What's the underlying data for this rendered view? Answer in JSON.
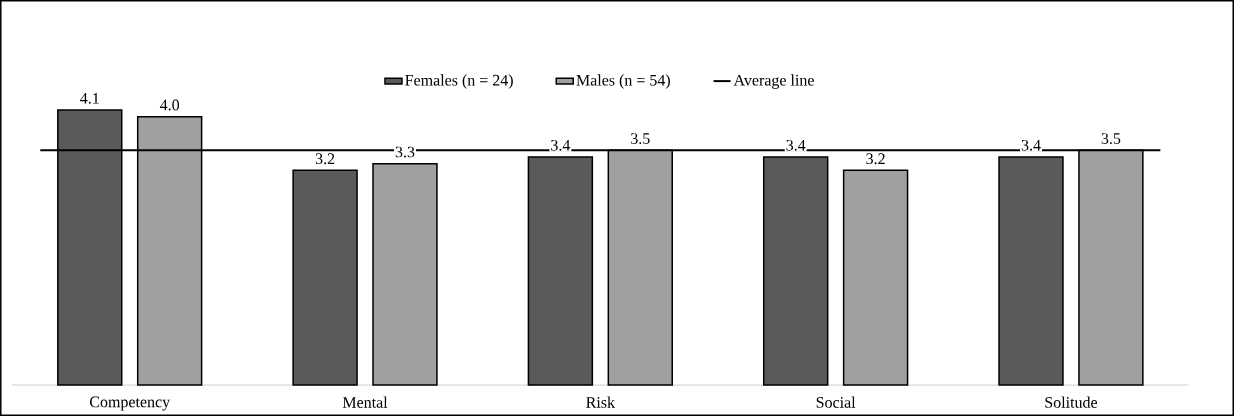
{
  "chart_data": {
    "type": "bar",
    "categories": [
      "Competency",
      "Mental",
      "Risk",
      "Social",
      "Solitude"
    ],
    "series": [
      {
        "name": "Females (n = 24)",
        "color": "#5a5a5a",
        "values": [
          4.1,
          3.2,
          3.4,
          3.4,
          3.4
        ],
        "value_labels": [
          "4.1",
          "3.2",
          "3.4",
          "3.4",
          "3.4"
        ]
      },
      {
        "name": "Males (n = 54)",
        "color": "#a0a0a0",
        "values": [
          4.0,
          3.3,
          3.5,
          3.2,
          3.5
        ],
        "value_labels": [
          "4.0",
          "3.3",
          "3.5",
          "3.2",
          "3.5"
        ]
      }
    ],
    "tick_labels": "x",
    "legend": "top",
    "grid": false,
    "ref_lines": [
      {
        "axis": "y",
        "value": 3.5,
        "label": "Average line",
        "color": "#000000",
        "line_style": "solid"
      }
    ]
  }
}
